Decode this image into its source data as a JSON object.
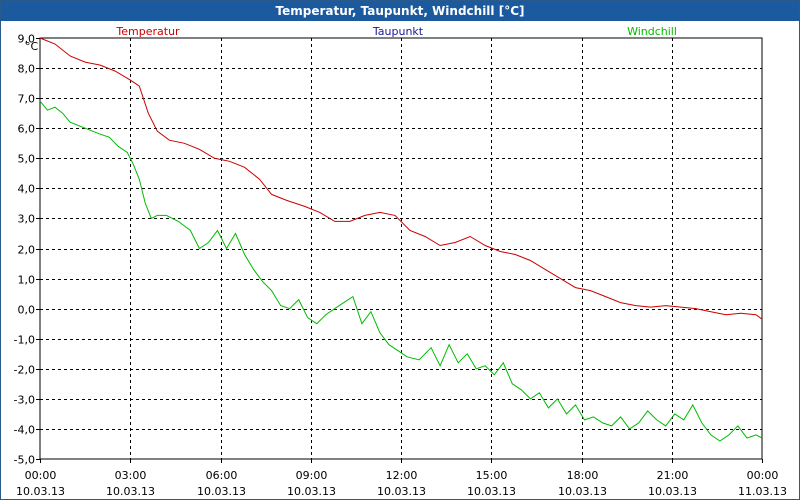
{
  "window": {
    "title": "Temperatur, Taupunkt, Windchill [°C]"
  },
  "chart_data": {
    "type": "line",
    "title": "Temperatur, Taupunkt, Windchill [°C]",
    "ylabel": "°C",
    "ylim": [
      -5.0,
      9.0
    ],
    "yticks": [
      "9,0",
      "8,0",
      "7,0",
      "6,0",
      "5,0",
      "4,0",
      "3,0",
      "2,0",
      "1,0",
      "0,0",
      "-1,0",
      "-2,0",
      "-3,0",
      "-4,0",
      "-5,0"
    ],
    "yticks_values": [
      9,
      8,
      7,
      6,
      5,
      4,
      3,
      2,
      1,
      0,
      -1,
      -2,
      -3,
      -4,
      -5
    ],
    "xlim": [
      0,
      24
    ],
    "xticks": [
      {
        "x": 0,
        "time": "00:00",
        "date": "10.03.13"
      },
      {
        "x": 3,
        "time": "03:00",
        "date": "10.03.13"
      },
      {
        "x": 6,
        "time": "06:00",
        "date": "10.03.13"
      },
      {
        "x": 9,
        "time": "09:00",
        "date": "10.03.13"
      },
      {
        "x": 12,
        "time": "12:00",
        "date": "10.03.13"
      },
      {
        "x": 15,
        "time": "15:00",
        "date": "10.03.13"
      },
      {
        "x": 18,
        "time": "18:00",
        "date": "10.03.13"
      },
      {
        "x": 21,
        "time": "21:00",
        "date": "10.03.13"
      },
      {
        "x": 24,
        "time": "00:00",
        "date": "11.03.13"
      }
    ],
    "grid": true,
    "legend": "top",
    "series": [
      {
        "name": "Temperatur",
        "color": "#cc0000",
        "x": [
          0,
          0.5,
          1,
          1.5,
          2,
          2.5,
          3,
          3.3,
          3.6,
          3.9,
          4.3,
          4.8,
          5.3,
          5.8,
          6.3,
          6.8,
          7.3,
          7.7,
          8.2,
          8.8,
          9.3,
          9.8,
          10.3,
          10.8,
          11.3,
          11.8,
          12.3,
          12.8,
          13.3,
          13.8,
          14.3,
          14.8,
          15.3,
          15.8,
          16.3,
          16.8,
          17.3,
          17.8,
          18.3,
          18.8,
          19.3,
          19.8,
          20.3,
          20.8,
          21.3,
          21.8,
          22.3,
          22.8,
          23.3,
          23.8,
          24
        ],
        "y": [
          9.0,
          8.8,
          8.4,
          8.2,
          8.1,
          7.9,
          7.6,
          7.4,
          6.5,
          5.9,
          5.6,
          5.5,
          5.3,
          5.0,
          4.9,
          4.7,
          4.3,
          3.8,
          3.6,
          3.4,
          3.2,
          2.9,
          2.9,
          3.1,
          3.2,
          3.1,
          2.6,
          2.4,
          2.1,
          2.2,
          2.4,
          2.1,
          1.9,
          1.8,
          1.6,
          1.3,
          1.0,
          0.7,
          0.6,
          0.4,
          0.2,
          0.1,
          0.05,
          0.1,
          0.05,
          0.0,
          -0.1,
          -0.2,
          -0.15,
          -0.2,
          -0.35
        ]
      },
      {
        "name": "Taupunkt",
        "color": "#1a1a99",
        "x": [],
        "y": []
      },
      {
        "name": "Windchill",
        "color": "#00bb00",
        "x": [
          0,
          0.25,
          0.5,
          0.75,
          1.0,
          1.5,
          2.0,
          2.3,
          2.6,
          2.9,
          3.1,
          3.3,
          3.5,
          3.7,
          3.9,
          4.2,
          4.6,
          5.0,
          5.3,
          5.6,
          5.9,
          6.2,
          6.5,
          6.8,
          7.1,
          7.4,
          7.7,
          8.0,
          8.3,
          8.6,
          8.9,
          9.2,
          9.5,
          9.8,
          10.1,
          10.4,
          10.7,
          11.0,
          11.3,
          11.6,
          11.9,
          12.2,
          12.6,
          13.0,
          13.3,
          13.6,
          13.9,
          14.2,
          14.5,
          14.8,
          15.1,
          15.4,
          15.7,
          16.0,
          16.3,
          16.6,
          16.9,
          17.2,
          17.5,
          17.8,
          18.1,
          18.4,
          18.7,
          19.0,
          19.3,
          19.6,
          19.9,
          20.2,
          20.5,
          20.8,
          21.1,
          21.4,
          21.7,
          22.0,
          22.3,
          22.6,
          22.9,
          23.2,
          23.5,
          23.8,
          24.0
        ],
        "y": [
          6.9,
          6.6,
          6.7,
          6.5,
          6.2,
          6.0,
          5.8,
          5.7,
          5.4,
          5.2,
          4.8,
          4.3,
          3.5,
          3.0,
          3.1,
          3.1,
          2.9,
          2.6,
          2.0,
          2.2,
          2.6,
          2.0,
          2.5,
          1.8,
          1.3,
          0.9,
          0.6,
          0.1,
          0.0,
          0.3,
          -0.3,
          -0.5,
          -0.2,
          0.0,
          0.2,
          0.4,
          -0.5,
          -0.1,
          -0.8,
          -1.2,
          -1.4,
          -1.6,
          -1.7,
          -1.3,
          -1.9,
          -1.2,
          -1.8,
          -1.5,
          -2.0,
          -1.9,
          -2.2,
          -1.8,
          -2.5,
          -2.7,
          -3.0,
          -2.8,
          -3.3,
          -3.0,
          -3.5,
          -3.2,
          -3.7,
          -3.6,
          -3.8,
          -3.9,
          -3.6,
          -4.0,
          -3.8,
          -3.4,
          -3.7,
          -3.9,
          -3.5,
          -3.7,
          -3.2,
          -3.8,
          -4.2,
          -4.4,
          -4.2,
          -3.9,
          -4.3,
          -4.2,
          -4.3
        ]
      }
    ]
  }
}
